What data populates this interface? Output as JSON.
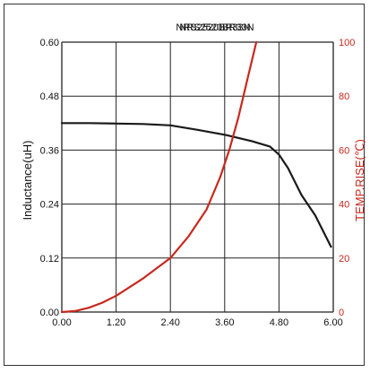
{
  "colors": {
    "inductance": "#1a1a1a",
    "temp_rise": "#c8281e",
    "grid": "#222222"
  },
  "chart_data": {
    "type": "line",
    "title": "NRS2520BR33N",
    "title_overlay": "NRS2520BR33N",
    "xlabel": "",
    "ylabel_left": "Inductance(uH)",
    "ylabel_right": "TEMP.RISE(℃)",
    "xlim": [
      0,
      6
    ],
    "ylim_left": [
      0,
      0.6
    ],
    "ylim_right": [
      0,
      100
    ],
    "x_ticks": [
      "0.00",
      "1.20",
      "2.40",
      "3.60",
      "4.80",
      "6.00"
    ],
    "y_left_ticks": [
      "0.00",
      "0.12",
      "0.24",
      "0.36",
      "0.48",
      "0.60"
    ],
    "y_right_ticks": [
      "0",
      "20",
      "40",
      "60",
      "80",
      "100"
    ],
    "grid": true,
    "series": [
      {
        "axis": "left",
        "color": "#1a1a1a",
        "points": [
          [
            0,
            0.42
          ],
          [
            0.6,
            0.42
          ],
          [
            1.2,
            0.419
          ],
          [
            1.8,
            0.418
          ],
          [
            2.4,
            0.415
          ],
          [
            3.0,
            0.405
          ],
          [
            3.6,
            0.394
          ],
          [
            4.2,
            0.38
          ],
          [
            4.6,
            0.368
          ],
          [
            4.8,
            0.35
          ],
          [
            5.0,
            0.32
          ],
          [
            5.3,
            0.26
          ],
          [
            5.6,
            0.215
          ],
          [
            5.95,
            0.145
          ]
        ]
      },
      {
        "axis": "right",
        "color": "#c8281e",
        "points": [
          [
            0,
            0
          ],
          [
            0.3,
            0.4
          ],
          [
            0.6,
            1.6
          ],
          [
            0.9,
            3.5
          ],
          [
            1.2,
            6
          ],
          [
            1.8,
            12.5
          ],
          [
            2.4,
            20
          ],
          [
            2.8,
            28
          ],
          [
            3.2,
            38
          ],
          [
            3.5,
            50
          ],
          [
            3.7,
            60
          ],
          [
            3.9,
            72
          ],
          [
            4.1,
            86
          ],
          [
            4.3,
            100
          ]
        ]
      }
    ]
  }
}
